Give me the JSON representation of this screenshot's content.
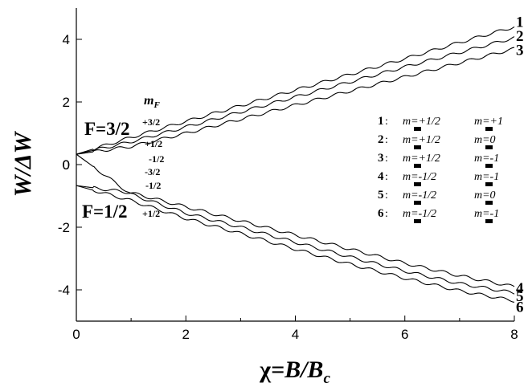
{
  "chart_data": {
    "type": "line",
    "xlabel": "χ=B/Bc",
    "ylabel": "W/ΔW",
    "xlim": [
      0,
      8
    ],
    "ylim": [
      -5,
      5
    ],
    "x_ticks": [
      "0",
      "2",
      "4",
      "6",
      "8"
    ],
    "y_ticks": [
      "-4",
      "-2",
      "0",
      "2",
      "4"
    ],
    "grid": false,
    "legend_position": "center-right",
    "series": [
      {
        "label": "1",
        "x": [
          0,
          1,
          2,
          3,
          4,
          5,
          6,
          7,
          8
        ],
        "y": [
          0.33,
          0.87,
          1.38,
          1.88,
          2.38,
          2.88,
          3.38,
          3.9,
          4.4
        ]
      },
      {
        "label": "2",
        "x": [
          0,
          1,
          2,
          3,
          4,
          5,
          6,
          7,
          8
        ],
        "y": [
          0.33,
          0.73,
          1.2,
          1.68,
          2.16,
          2.64,
          3.12,
          3.58,
          4.05
        ]
      },
      {
        "label": "3",
        "x": [
          0,
          1,
          2,
          3,
          4,
          5,
          6,
          7,
          8
        ],
        "y": [
          0.33,
          0.58,
          1.0,
          1.45,
          1.9,
          2.35,
          2.8,
          3.25,
          3.7
        ]
      },
      {
        "label": "4",
        "x": [
          0,
          1,
          2,
          3,
          4,
          5,
          6,
          7,
          8
        ],
        "y": [
          -0.67,
          -0.9,
          -1.35,
          -1.8,
          -2.25,
          -2.7,
          -3.15,
          -3.55,
          -3.9
        ]
      },
      {
        "label": "5",
        "x": [
          0,
          1,
          2,
          3,
          4,
          5,
          6,
          7,
          8
        ],
        "y": [
          0.33,
          -0.95,
          -1.55,
          -2.0,
          -2.48,
          -2.95,
          -3.4,
          -3.8,
          -4.1
        ]
      },
      {
        "label": "6",
        "x": [
          0,
          1,
          2,
          3,
          4,
          5,
          6,
          7,
          8
        ],
        "y": [
          -0.67,
          -1.15,
          -1.72,
          -2.2,
          -2.7,
          -3.18,
          -3.63,
          -4.03,
          -4.35
        ]
      }
    ],
    "legend": [
      {
        "num": "1",
        "col1": "m=+1/2",
        "col2": "m=+1"
      },
      {
        "num": "2",
        "col1": "m=+1/2",
        "col2": "m=0"
      },
      {
        "num": "3",
        "col1": "m=+1/2",
        "col2": "m=-1"
      },
      {
        "num": "4",
        "col1": "m=-1/2",
        "col2": "m=-1"
      },
      {
        "num": "5",
        "col1": "m=-1/2",
        "col2": "m=0"
      },
      {
        "num": "6",
        "col1": "m=-1/2",
        "col2": "m=-1"
      }
    ],
    "annotations": {
      "level_upper": "F=3/2",
      "level_lower": "F=1/2",
      "mf_header": "mF",
      "mf_values": [
        "+3/2",
        "+1/2",
        "-1/2",
        "-3/2",
        "-1/2",
        "+1/2"
      ]
    }
  }
}
